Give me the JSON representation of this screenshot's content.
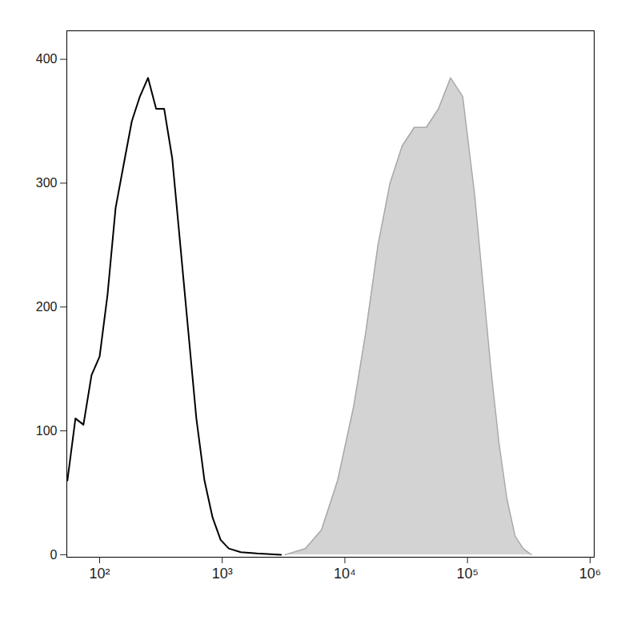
{
  "chart_data": {
    "type": "histogram",
    "log": "x",
    "grid": false,
    "xlim": [
      54,
      1080000
    ],
    "ylim": [
      -2,
      423
    ],
    "xticks": [
      {
        "value": 100,
        "label": "10²"
      },
      {
        "value": 1000,
        "label": "10³"
      },
      {
        "value": 10000,
        "label": "10⁴"
      },
      {
        "value": 100000,
        "label": "10⁵"
      },
      {
        "value": 1000000,
        "label": "10⁶"
      }
    ],
    "yticks": [
      0,
      100,
      200,
      300,
      400
    ],
    "series": [
      {
        "type": "area",
        "color": "#d3d3d3",
        "x": [
          3258,
          4760,
          6442,
          8730,
          11810,
          14830,
          18620,
          23350,
          29310,
          36810,
          46130,
          57940,
          72780,
          91410,
          114600,
          133300,
          155200,
          180700,
          209900,
          244400,
          284400,
          331100
        ],
        "values": [
          0,
          5,
          20,
          60,
          120,
          180,
          250,
          300,
          330,
          345,
          345,
          360,
          385,
          370,
          290,
          220,
          150,
          90,
          45,
          15,
          5,
          0
        ]
      },
      {
        "type": "line",
        "color": "#000000",
        "x": [
          54.6,
          63.5,
          73.8,
          85.9,
          100,
          116,
          135,
          157,
          183,
          213,
          248,
          289,
          336,
          391,
          455,
          529,
          615,
          716,
          834,
          970,
          1130,
          1417,
          1918,
          3020
        ],
        "values": [
          60,
          110,
          105,
          145,
          160,
          210,
          280,
          315,
          350,
          370,
          385,
          360,
          360,
          320,
          250,
          180,
          110,
          60,
          30,
          12,
          5,
          2,
          1,
          0
        ]
      }
    ]
  }
}
